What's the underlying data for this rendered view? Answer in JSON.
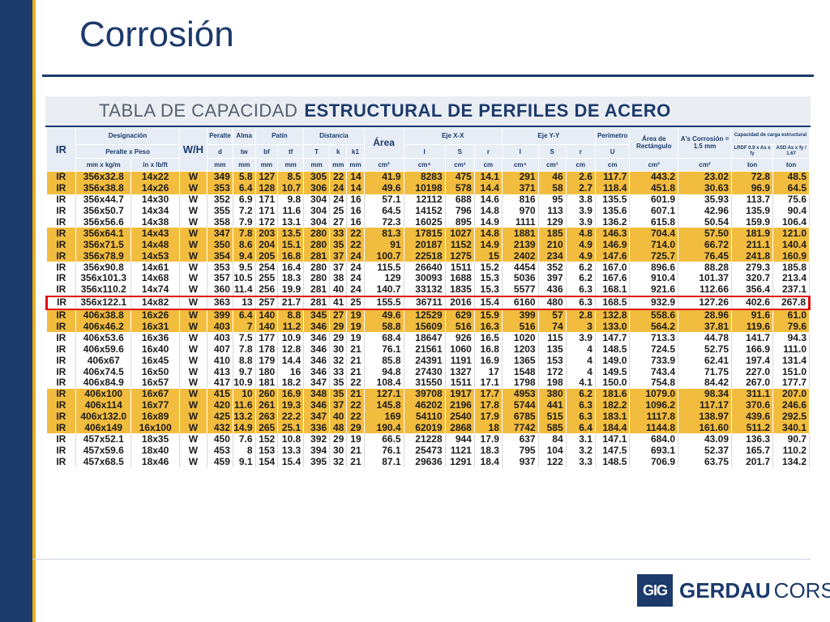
{
  "slide": {
    "title": "Corrosión"
  },
  "table": {
    "title_thin": "TABLA DE CAPACIDAD",
    "title_bold": "ESTRUCTURAL DE PERFILES DE ACERO",
    "headers": {
      "ir": "IR",
      "designacion": "Designación",
      "peralte_x_peso": "Peralte x Peso",
      "wh": "W/H",
      "peralte": "Peralte",
      "alma": "Alma",
      "patin": "Patín",
      "distancia": "Distancia",
      "area": "Área",
      "eje_x": "Eje X-X",
      "eje_y": "Eje Y-Y",
      "perimetro": "Perímetro",
      "area_rect": "Área de Rectángulo",
      "as_corrosion": "A's Corrosión = 1.5 mm",
      "capacidad": "Capacidad de carga estructural",
      "sym": [
        "d",
        "tw",
        "bf",
        "tf",
        "T",
        "k",
        "k1",
        "I",
        "S",
        "r",
        "I",
        "S",
        "r",
        "U"
      ],
      "lrdf": "LRDF 0.9 x As x fy",
      "asd": "ASD As x fy / 1.67",
      "units": [
        "mm x kg/m",
        "in x lb/ft",
        "mm",
        "mm",
        "mm",
        "mm",
        "mm",
        "mm",
        "mm",
        "cm²",
        "cm⁴",
        "cm³",
        "cm",
        "cm⁴",
        "cm³",
        "cm",
        "cm",
        "cm²",
        "cm²",
        "ton",
        "ton"
      ]
    },
    "rows": [
      [
        "IR",
        "356x32.8",
        "14x22",
        "W",
        "349",
        "5.8",
        "127",
        "8.5",
        "305",
        "22",
        "14",
        "41.9",
        "8283",
        "475",
        "14.1",
        "291",
        "46",
        "2.6",
        "117.7",
        "443.2",
        "23.02",
        "72.8",
        "48.5"
      ],
      [
        "IR",
        "356x38.8",
        "14x26",
        "W",
        "353",
        "6.4",
        "128",
        "10.7",
        "306",
        "24",
        "14",
        "49.6",
        "10198",
        "578",
        "14.4",
        "371",
        "58",
        "2.7",
        "118.4",
        "451.8",
        "30.63",
        "96.9",
        "64.5"
      ],
      [
        "IR",
        "356x44.7",
        "14x30",
        "W",
        "352",
        "6.9",
        "171",
        "9.8",
        "304",
        "24",
        "16",
        "57.1",
        "12112",
        "688",
        "14.6",
        "816",
        "95",
        "3.8",
        "135.5",
        "601.9",
        "35.93",
        "113.7",
        "75.6"
      ],
      [
        "IR",
        "356x50.7",
        "14x34",
        "W",
        "355",
        "7.2",
        "171",
        "11.6",
        "304",
        "25",
        "16",
        "64.5",
        "14152",
        "796",
        "14.8",
        "970",
        "113",
        "3.9",
        "135.6",
        "607.1",
        "42.96",
        "135.9",
        "90.4"
      ],
      [
        "IR",
        "356x56.6",
        "14x38",
        "W",
        "358",
        "7.9",
        "172",
        "13.1",
        "304",
        "27",
        "16",
        "72.3",
        "16025",
        "895",
        "14.9",
        "1111",
        "129",
        "3.9",
        "136.2",
        "615.8",
        "50.54",
        "159.9",
        "106.4"
      ],
      [
        "IR",
        "356x64.1",
        "14x43",
        "W",
        "347",
        "7.8",
        "203",
        "13.5",
        "280",
        "33",
        "22",
        "81.3",
        "17815",
        "1027",
        "14.8",
        "1881",
        "185",
        "4.8",
        "146.3",
        "704.4",
        "57.50",
        "181.9",
        "121.0"
      ],
      [
        "IR",
        "356x71.5",
        "14x48",
        "W",
        "350",
        "8.6",
        "204",
        "15.1",
        "280",
        "35",
        "22",
        "91",
        "20187",
        "1152",
        "14.9",
        "2139",
        "210",
        "4.9",
        "146.9",
        "714.0",
        "66.72",
        "211.1",
        "140.4"
      ],
      [
        "IR",
        "356x78.9",
        "14x53",
        "W",
        "354",
        "9.4",
        "205",
        "16.8",
        "281",
        "37",
        "24",
        "100.7",
        "22518",
        "1275",
        "15",
        "2402",
        "234",
        "4.9",
        "147.6",
        "725.7",
        "76.45",
        "241.8",
        "160.9"
      ],
      [
        "IR",
        "356x90.8",
        "14x61",
        "W",
        "353",
        "9.5",
        "254",
        "16.4",
        "280",
        "37",
        "24",
        "115.5",
        "26640",
        "1511",
        "15.2",
        "4454",
        "352",
        "6.2",
        "167.0",
        "896.6",
        "88.28",
        "279.3",
        "185.8"
      ],
      [
        "IR",
        "356x101.3",
        "14x68",
        "W",
        "357",
        "10.5",
        "255",
        "18.3",
        "280",
        "38",
        "24",
        "129",
        "30093",
        "1688",
        "15.3",
        "5036",
        "397",
        "6.2",
        "167.6",
        "910.4",
        "101.37",
        "320.7",
        "213.4"
      ],
      [
        "IR",
        "356x110.2",
        "14x74",
        "W",
        "360",
        "11.4",
        "256",
        "19.9",
        "281",
        "40",
        "24",
        "140.7",
        "33132",
        "1835",
        "15.3",
        "5577",
        "436",
        "6.3",
        "168.1",
        "921.6",
        "112.66",
        "356.4",
        "237.1"
      ],
      [
        "IR",
        "356x122.1",
        "14x82",
        "W",
        "363",
        "13",
        "257",
        "21.7",
        "281",
        "41",
        "25",
        "155.5",
        "36711",
        "2016",
        "15.4",
        "6160",
        "480",
        "6.3",
        "168.5",
        "932.9",
        "127.26",
        "402.6",
        "267.8"
      ],
      [
        "IR",
        "406x38.8",
        "16x26",
        "W",
        "399",
        "6.4",
        "140",
        "8.8",
        "345",
        "27",
        "19",
        "49.6",
        "12529",
        "629",
        "15.9",
        "399",
        "57",
        "2.8",
        "132.8",
        "558.6",
        "28.96",
        "91.6",
        "61.0"
      ],
      [
        "IR",
        "406x46.2",
        "16x31",
        "W",
        "403",
        "7",
        "140",
        "11.2",
        "346",
        "29",
        "19",
        "58.8",
        "15609",
        "516",
        "16.3",
        "516",
        "74",
        "3",
        "133.0",
        "564.2",
        "37.81",
        "119.6",
        "79.6"
      ],
      [
        "IR",
        "406x53.6",
        "16x36",
        "W",
        "403",
        "7.5",
        "177",
        "10.9",
        "346",
        "29",
        "19",
        "68.4",
        "18647",
        "926",
        "16.5",
        "1020",
        "115",
        "3.9",
        "147.7",
        "713.3",
        "44.78",
        "141.7",
        "94.3"
      ],
      [
        "IR",
        "406x59.6",
        "16x40",
        "W",
        "407",
        "7.8",
        "178",
        "12.8",
        "346",
        "30",
        "21",
        "76.1",
        "21561",
        "1060",
        "16.8",
        "1203",
        "135",
        "4",
        "148.5",
        "724.5",
        "52.75",
        "166.9",
        "111.0"
      ],
      [
        "IR",
        "406x67",
        "16x45",
        "W",
        "410",
        "8.8",
        "179",
        "14.4",
        "346",
        "32",
        "21",
        "85.8",
        "24391",
        "1191",
        "16.9",
        "1365",
        "153",
        "4",
        "149.0",
        "733.9",
        "62.41",
        "197.4",
        "131.4"
      ],
      [
        "IR",
        "406x74.5",
        "16x50",
        "W",
        "413",
        "9.7",
        "180",
        "16",
        "346",
        "33",
        "21",
        "94.8",
        "27430",
        "1327",
        "17",
        "1548",
        "172",
        "4",
        "149.5",
        "743.4",
        "71.75",
        "227.0",
        "151.0"
      ],
      [
        "IR",
        "406x84.9",
        "16x57",
        "W",
        "417",
        "10.9",
        "181",
        "18.2",
        "347",
        "35",
        "22",
        "108.4",
        "31550",
        "1511",
        "17.1",
        "1798",
        "198",
        "4.1",
        "150.0",
        "754.8",
        "84.42",
        "267.0",
        "177.7"
      ],
      [
        "IR",
        "406x100",
        "16x67",
        "W",
        "415",
        "10",
        "260",
        "16.9",
        "348",
        "35",
        "21",
        "127.1",
        "39708",
        "1917",
        "17.7",
        "4953",
        "380",
        "6.2",
        "181.6",
        "1079.0",
        "98.34",
        "311.1",
        "207.0"
      ],
      [
        "IR",
        "406x114",
        "16x77",
        "W",
        "420",
        "11.6",
        "261",
        "19.3",
        "346",
        "37",
        "22",
        "145.8",
        "46202",
        "2196",
        "17.8",
        "5744",
        "441",
        "6.3",
        "182.2",
        "1096.2",
        "117.17",
        "370.6",
        "246.6"
      ],
      [
        "IR",
        "406x132.0",
        "16x89",
        "W",
        "425",
        "13.2",
        "263",
        "22.2",
        "347",
        "40",
        "22",
        "169",
        "54110",
        "2540",
        "17.9",
        "6785",
        "515",
        "6.3",
        "183.1",
        "1117.8",
        "138.97",
        "439.6",
        "292.5"
      ],
      [
        "IR",
        "406x149",
        "16x100",
        "W",
        "432",
        "14.9",
        "265",
        "25.1",
        "336",
        "48",
        "29",
        "190.4",
        "62019",
        "2868",
        "18",
        "7742",
        "585",
        "6.4",
        "184.4",
        "1144.8",
        "161.60",
        "511.2",
        "340.1"
      ],
      [
        "IR",
        "457x52.1",
        "18x35",
        "W",
        "450",
        "7.6",
        "152",
        "10.8",
        "392",
        "29",
        "19",
        "66.5",
        "21228",
        "944",
        "17.9",
        "637",
        "84",
        "3.1",
        "147.1",
        "684.0",
        "43.09",
        "136.3",
        "90.7"
      ],
      [
        "IR",
        "457x59.6",
        "18x40",
        "W",
        "453",
        "8",
        "153",
        "13.3",
        "394",
        "30",
        "21",
        "76.1",
        "25473",
        "1121",
        "18.3",
        "795",
        "104",
        "3.2",
        "147.5",
        "693.1",
        "52.37",
        "165.7",
        "110.2"
      ],
      [
        "IR",
        "457x68.5",
        "18x46",
        "W",
        "459",
        "9.1",
        "154",
        "15.4",
        "395",
        "32",
        "21",
        "87.1",
        "29636",
        "1291",
        "18.4",
        "937",
        "122",
        "3.3",
        "148.5",
        "706.9",
        "63.75",
        "201.7",
        "134.2"
      ]
    ],
    "row_colors": [
      "yel",
      "yel",
      "wht",
      "wht",
      "wht",
      "yel",
      "yel",
      "yel",
      "wht",
      "wht",
      "wht",
      "hl",
      "yel",
      "yel",
      "wht",
      "wht",
      "wht",
      "wht",
      "wht",
      "yel",
      "yel",
      "yel",
      "yel",
      "wht",
      "wht",
      "wht"
    ],
    "highlighted_row_color": "#e01010"
  },
  "logo": {
    "mark": "GΙG",
    "gerdau": "GERDAU",
    "corsa": "CORSA"
  },
  "colors": {
    "brand_blue": "#1c3a6b",
    "row_yellow": "#f2bc3f",
    "highlight_red": "#e01010"
  }
}
